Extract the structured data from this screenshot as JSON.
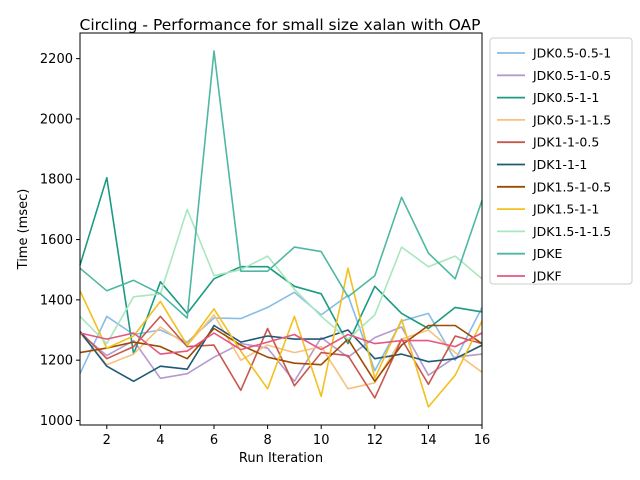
{
  "chart_data": {
    "type": "line",
    "title": "Circling - Performance for small size xalan with OAP",
    "xlabel": "Run Iteration",
    "ylabel": "Time (msec)",
    "xlim": [
      1,
      16
    ],
    "ylim": [
      985,
      2285
    ],
    "xticks": [
      2,
      4,
      6,
      8,
      10,
      12,
      14,
      16
    ],
    "yticks": [
      1000,
      1200,
      1400,
      1600,
      1800,
      2000,
      2200
    ],
    "grid": false,
    "legend_position": "outside-right",
    "x": [
      1,
      2,
      3,
      4,
      5,
      6,
      7,
      8,
      9,
      10,
      11,
      12,
      13,
      14,
      15,
      16
    ],
    "series": [
      {
        "name": "JDK0.5-0.5-1",
        "color": "#88bde6",
        "values": [
          1155,
          1345,
          1285,
          1300,
          1260,
          1340,
          1338,
          1375,
          1425,
          1350,
          1415,
          1165,
          1330,
          1355,
          1200,
          1375
        ]
      },
      {
        "name": "JDK0.5-1-0.5",
        "color": "#b59ad0",
        "values": [
          1290,
          1215,
          1265,
          1140,
          1155,
          1210,
          1255,
          1240,
          1130,
          1275,
          1210,
          1275,
          1310,
          1150,
          1210,
          1220
        ]
      },
      {
        "name": "JDK0.5-1-1",
        "color": "#1a9b82",
        "values": [
          1515,
          1805,
          1220,
          1460,
          1355,
          1470,
          1510,
          1510,
          1445,
          1420,
          1255,
          1445,
          1355,
          1305,
          1375,
          1360
        ]
      },
      {
        "name": "JDK0.5-1-1.5",
        "color": "#f8c17d",
        "values": [
          1290,
          1185,
          1220,
          1310,
          1250,
          1350,
          1200,
          1250,
          1225,
          1245,
          1105,
          1125,
          1270,
          1300,
          1225,
          1160
        ]
      },
      {
        "name": "JDK1-1-0.5",
        "color": "#c8574d",
        "values": [
          1295,
          1205,
          1245,
          1345,
          1245,
          1250,
          1100,
          1305,
          1115,
          1225,
          1215,
          1075,
          1270,
          1120,
          1280,
          1255
        ]
      },
      {
        "name": "JDK1-1-1",
        "color": "#1e5a78",
        "values": [
          1295,
          1180,
          1130,
          1180,
          1170,
          1315,
          1260,
          1280,
          1270,
          1270,
          1300,
          1205,
          1220,
          1195,
          1205,
          1250
        ]
      },
      {
        "name": "JDK1.5-1-0.5",
        "color": "#9e4b00",
        "values": [
          1225,
          1240,
          1260,
          1245,
          1205,
          1305,
          1250,
          1210,
          1190,
          1185,
          1270,
          1130,
          1250,
          1315,
          1315,
          1255
        ]
      },
      {
        "name": "JDK1.5-1-1",
        "color": "#f2c01f",
        "values": [
          1430,
          1240,
          1280,
          1395,
          1250,
          1370,
          1230,
          1105,
          1345,
          1080,
          1505,
          1140,
          1335,
          1045,
          1150,
          1330
        ]
      },
      {
        "name": "JDK1.5-1-1.5",
        "color": "#a9e7bd",
        "values": [
          1345,
          1255,
          1410,
          1420,
          1700,
          1480,
          1500,
          1545,
          1435,
          1345,
          1270,
          1350,
          1575,
          1510,
          1545,
          1470
        ]
      },
      {
        "name": "JDKE",
        "color": "#4eb8a3",
        "values": [
          1505,
          1430,
          1465,
          1420,
          1340,
          2225,
          1495,
          1495,
          1575,
          1560,
          1410,
          1480,
          1740,
          1555,
          1470,
          1730
        ]
      },
      {
        "name": "JDKF",
        "color": "#e8567f",
        "values": [
          1290,
          1270,
          1290,
          1220,
          1230,
          1290,
          1235,
          1260,
          1285,
          1235,
          1285,
          1255,
          1265,
          1265,
          1245,
          1290
        ]
      }
    ]
  }
}
